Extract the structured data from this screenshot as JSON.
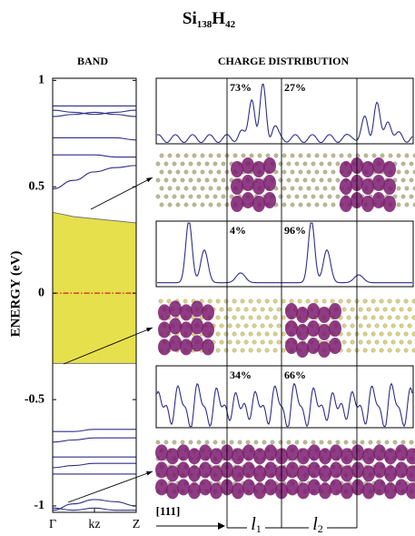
{
  "title_parts": [
    "Si",
    "138",
    "H",
    "42"
  ],
  "panel_titles": {
    "band": "BAND",
    "charge": "CHARGE DISTRIBUTION"
  },
  "chart_data": {
    "type": "line",
    "y_label": "ENERGY (eV)",
    "x": [
      0,
      0.25,
      0.5,
      0.75,
      1
    ],
    "xlim": [
      0,
      1
    ],
    "xticks": [
      {
        "value": 0,
        "label": "Γ"
      },
      {
        "value": 0.5,
        "label": "kz"
      },
      {
        "value": 1,
        "label": "Z"
      }
    ],
    "ylim": [
      -1.03,
      1.01
    ],
    "yticks": [
      -1,
      -0.5,
      0,
      0.5,
      1
    ],
    "series": [
      {
        "color": "#2e2e8a",
        "values": [
          0.88,
          0.88,
          0.88,
          0.88,
          0.88
        ]
      },
      {
        "color": "#2e2e8a",
        "values": [
          0.86,
          0.85,
          0.84,
          0.85,
          0.86
        ]
      },
      {
        "color": "#2e2e8a",
        "values": [
          0.83,
          0.84,
          0.85,
          0.84,
          0.83
        ]
      },
      {
        "color": "#2e2e8a",
        "values": [
          0.73,
          0.73,
          0.73,
          0.73,
          0.72
        ]
      },
      {
        "color": "#2e2e8a",
        "values": [
          0.65,
          0.65,
          0.65,
          0.64,
          0.64
        ]
      },
      {
        "color": "#2e2e8a",
        "values": [
          0.49,
          0.53,
          0.57,
          0.59,
          0.6
        ]
      },
      {
        "color": "#2e2e8a",
        "values": [
          -0.65,
          -0.65,
          -0.64,
          -0.64,
          -0.64
        ]
      },
      {
        "color": "#2e2e8a",
        "values": [
          -0.7,
          -0.69,
          -0.68,
          -0.68,
          -0.68
        ]
      },
      {
        "color": "#2e2e8a",
        "values": [
          -0.77,
          -0.77,
          -0.77,
          -0.77,
          -0.77
        ]
      },
      {
        "color": "#2e2e8a",
        "values": [
          -0.82,
          -0.81,
          -0.8,
          -0.8,
          -0.8
        ]
      },
      {
        "color": "#2e2e8a",
        "values": [
          -0.85,
          -0.85,
          -0.85,
          -0.85,
          -0.85
        ]
      },
      {
        "color": "#2e2e8a",
        "values": [
          -1.02,
          -0.99,
          -0.97,
          -0.98,
          -1.0
        ]
      },
      {
        "color": "#2e2e8a",
        "values": [
          -1.01,
          -1.02,
          -1.01,
          -1.02,
          -1.02
        ]
      }
    ],
    "band_fill": {
      "color": "#e6e04c",
      "top": [
        0.38,
        0.36,
        0.35,
        0.34,
        0.33
      ],
      "bottom": [
        -0.33,
        -0.33,
        -0.33,
        -0.33,
        -0.33
      ]
    },
    "fermi": {
      "value": 0,
      "color": "#d81e1e"
    }
  },
  "charge_panels": [
    {
      "left": "73%",
      "right": "27%"
    },
    {
      "left": "4%",
      "right": "96%"
    },
    {
      "left": "34%",
      "right": "66%"
    }
  ],
  "direction": "[111]",
  "segments": [
    {
      "symbol": "l",
      "index": "1"
    },
    {
      "symbol": "l",
      "index": "2"
    }
  ]
}
